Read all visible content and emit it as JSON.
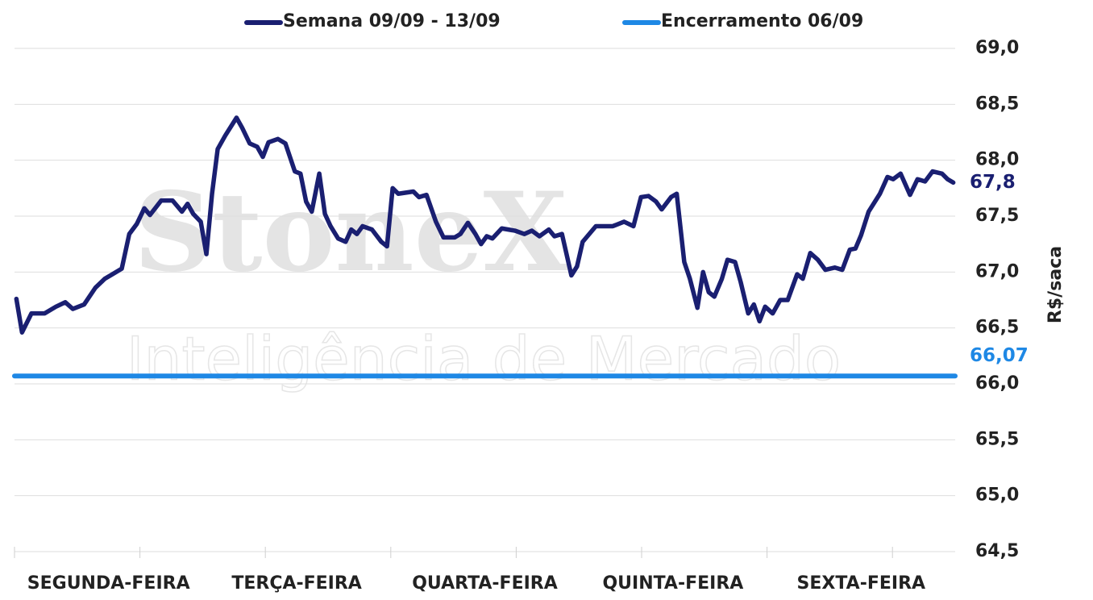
{
  "chart_data": {
    "type": "line",
    "watermark": [
      "StoneX",
      "Inteligência de Mercado"
    ],
    "y_label": "R$/saca",
    "xlim": [
      0,
      5
    ],
    "xticks": [
      {
        "value": 0.5,
        "label": "SEGUNDA-FEIRA"
      },
      {
        "value": 1.5,
        "label": "TERÇA-FEIRA"
      },
      {
        "value": 2.5,
        "label": "QUARTA-FEIRA"
      },
      {
        "value": 3.5,
        "label": "QUINTA-FEIRA"
      },
      {
        "value": 4.5,
        "label": "SEXTA-FEIRA"
      }
    ],
    "xminorticks": [
      0,
      0.6667,
      1.3333,
      2,
      2.6667,
      3.3333,
      4,
      4.6667
    ],
    "ylim": [
      64.5,
      69
    ],
    "yticks": [
      {
        "value": 64.5,
        "label": "64,5"
      },
      {
        "value": 65,
        "label": "65,0"
      },
      {
        "value": 65.5,
        "label": "65,5"
      },
      {
        "value": 66,
        "label": "66,0"
      },
      {
        "value": 66.5,
        "label": "66,5"
      },
      {
        "value": 67,
        "label": "67,0"
      },
      {
        "value": 67.5,
        "label": "67,5"
      },
      {
        "value": 68,
        "label": "68,0"
      },
      {
        "value": 68.5,
        "label": "68,5"
      },
      {
        "value": 69,
        "label": "69,0"
      }
    ],
    "grid": true,
    "legend": "top",
    "series": [
      {
        "name": "Semana 09/09 - 13/09",
        "color": "#1a1f71",
        "end_label": "67,8",
        "x": [
          0.01,
          0.04,
          0.09,
          0.16,
          0.22,
          0.27,
          0.31,
          0.37,
          0.43,
          0.48,
          0.52,
          0.57,
          0.61,
          0.65,
          0.69,
          0.72,
          0.78,
          0.84,
          0.89,
          0.92,
          0.95,
          0.99,
          1.02,
          1.05,
          1.08,
          1.12,
          1.18,
          1.21,
          1.25,
          1.29,
          1.32,
          1.35,
          1.4,
          1.44,
          1.49,
          1.52,
          1.55,
          1.58,
          1.62,
          1.65,
          1.68,
          1.72,
          1.76,
          1.79,
          1.82,
          1.85,
          1.9,
          1.95,
          1.98,
          2.01,
          2.04,
          2.12,
          2.15,
          2.19,
          2.24,
          2.28,
          2.34,
          2.37,
          2.41,
          2.45,
          2.48,
          2.51,
          2.54,
          2.59,
          2.66,
          2.71,
          2.75,
          2.79,
          2.84,
          2.87,
          2.91,
          2.96,
          2.99,
          3.02,
          3.09,
          3.18,
          3.24,
          3.29,
          3.33,
          3.37,
          3.41,
          3.44,
          3.49,
          3.52,
          3.56,
          3.59,
          3.63,
          3.66,
          3.69,
          3.72,
          3.76,
          3.79,
          3.83,
          3.86,
          3.9,
          3.93,
          3.96,
          3.99,
          4.03,
          4.07,
          4.11,
          4.16,
          4.19,
          4.23,
          4.27,
          4.31,
          4.36,
          4.4,
          4.44,
          4.47,
          4.5,
          4.54,
          4.6,
          4.64,
          4.67,
          4.71,
          4.76,
          4.8,
          4.84,
          4.88,
          4.93,
          4.96,
          4.99
        ],
        "values": [
          66.76,
          66.46,
          66.63,
          66.63,
          66.69,
          66.73,
          66.67,
          66.71,
          66.86,
          66.94,
          66.98,
          67.03,
          67.34,
          67.43,
          67.57,
          67.51,
          67.64,
          67.64,
          67.54,
          67.61,
          67.52,
          67.45,
          67.16,
          67.7,
          68.1,
          68.22,
          68.38,
          68.29,
          68.15,
          68.12,
          68.03,
          68.16,
          68.19,
          68.15,
          67.9,
          67.88,
          67.63,
          67.54,
          67.88,
          67.52,
          67.41,
          67.3,
          67.27,
          67.38,
          67.34,
          67.41,
          67.38,
          67.27,
          67.23,
          67.75,
          67.7,
          67.72,
          67.67,
          67.69,
          67.45,
          67.31,
          67.31,
          67.34,
          67.44,
          67.34,
          67.25,
          67.32,
          67.3,
          67.39,
          67.37,
          67.34,
          67.37,
          67.32,
          67.38,
          67.32,
          67.34,
          66.97,
          67.05,
          67.27,
          67.41,
          67.41,
          67.45,
          67.41,
          67.67,
          67.68,
          67.63,
          67.56,
          67.67,
          67.7,
          67.09,
          66.94,
          66.68,
          67.0,
          66.82,
          66.78,
          66.94,
          67.11,
          67.09,
          66.91,
          66.63,
          66.71,
          66.56,
          66.69,
          66.63,
          66.75,
          66.75,
          66.98,
          66.94,
          67.17,
          67.11,
          67.02,
          67.04,
          67.02,
          67.2,
          67.21,
          67.33,
          67.54,
          67.7,
          67.85,
          67.83,
          67.88,
          67.69,
          67.83,
          67.81,
          67.9,
          67.88,
          67.83,
          67.8
        ]
      },
      {
        "name": "Encerramento 06/09",
        "color": "#1e88e5",
        "end_label": "66,07",
        "x": [
          0,
          5
        ],
        "values": [
          66.07,
          66.07
        ]
      }
    ]
  }
}
